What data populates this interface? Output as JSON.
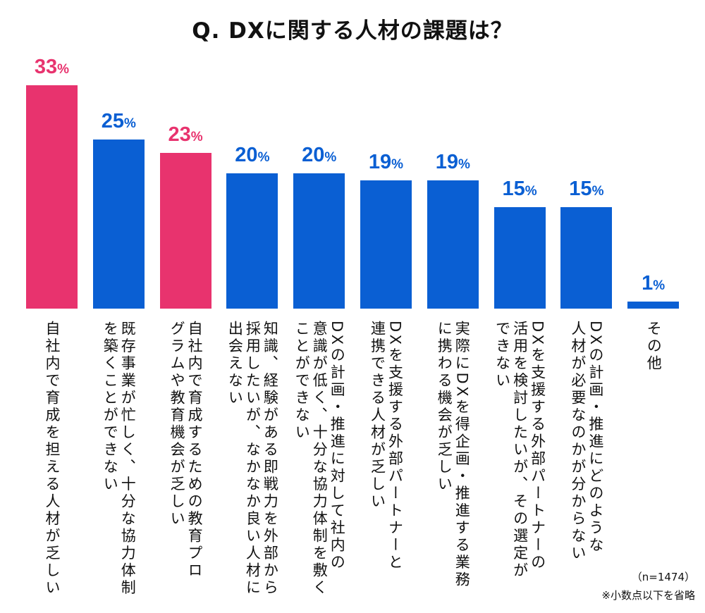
{
  "chart_data": {
    "type": "bar",
    "title": "Q. DXに関する人材の課題は？",
    "unit": "%",
    "categories": [
      [
        "自社内で育成を担える人材が乏しい"
      ],
      [
        "既存事業が忙しく、十分な協力体制",
        "を築くことができない"
      ],
      [
        "自社内で育成するための教育プロ",
        "グラムや教育機会が乏しい"
      ],
      [
        "知識、経験がある即戦力を外部から",
        "採用したいが、なかなか良い人材に",
        "出会えない"
      ],
      [
        "DXの計画・推進に対して社内の",
        "意識が低く、十分な協力体制を敷く",
        "ことができない"
      ],
      [
        "DXを支援する外部パートナーと",
        "連携できる人材が乏しい"
      ],
      [
        "実際にDXを得企画・推進する業務",
        "に携わる機会が乏しい"
      ],
      [
        "DXを支援する外部パートナーの",
        "活用を検討したいが、その選定が",
        "できない"
      ],
      [
        "DXの計画・推進にどのような",
        "人材が必要なのかが分からない"
      ],
      [
        "その他"
      ]
    ],
    "values": [
      33,
      25,
      23,
      20,
      20,
      19,
      19,
      15,
      15,
      1
    ],
    "highlight": [
      true,
      false,
      true,
      false,
      false,
      false,
      false,
      false,
      false,
      false
    ],
    "ylim": [
      0,
      35
    ],
    "grid": false
  },
  "colors": {
    "highlight": "#E8336E",
    "normal": "#0A5FD3"
  },
  "notes": {
    "sample": "（n=1474）",
    "rounding": "※小数点以下を省略"
  }
}
